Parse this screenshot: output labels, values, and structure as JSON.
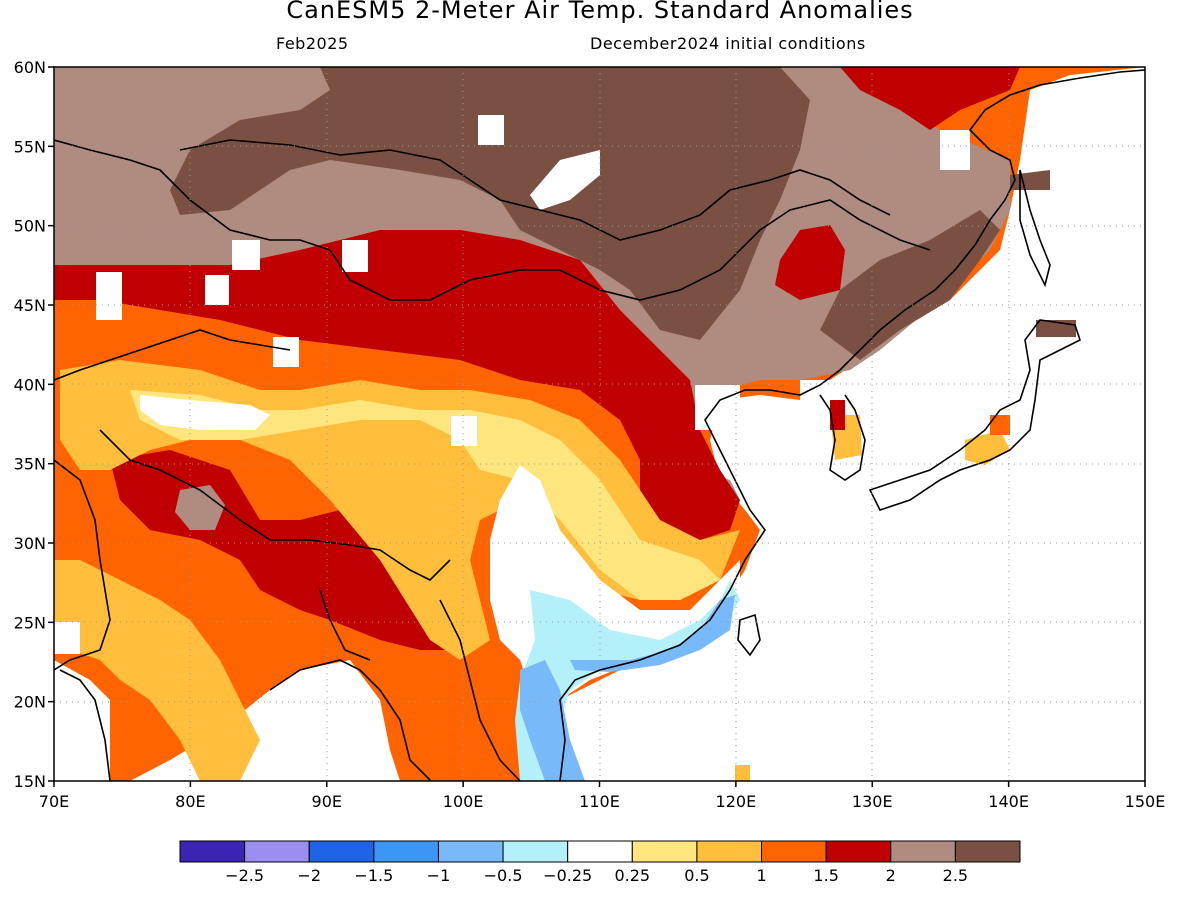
{
  "title": "CanESM5 2-Meter Air Temp. Standard Anomalies",
  "subtitle_left": "Feb2025",
  "subtitle_right": "December2024 initial conditions",
  "colors": {
    "lt_-2.5": "#3b24b4",
    "-2.5_-2": "#9b8ef0",
    "-2_-1.5": "#1e64e6",
    "-1.5_-1": "#3c96f5",
    "-1_-0.5": "#78b9fa",
    "-0.5_-0.25": "#b4f0fa",
    "-0.25_0.25": "#ffffff",
    "0.25_0.5": "#ffe57e",
    "0.5_1": "#ffbe3c",
    "1_1.5": "#ff6400",
    "1.5_2": "#c00000",
    "2_2.5": "#b08b7f",
    "gt_2.5": "#7a5043"
  },
  "legend": {
    "colors": [
      "#3b24b4",
      "#9b8ef0",
      "#1e64e6",
      "#3c96f5",
      "#78b9fa",
      "#b4f0fa",
      "#ffffff",
      "#ffe57e",
      "#ffbe3c",
      "#ff6400",
      "#c00000",
      "#b08b7f",
      "#7a5043"
    ],
    "labels": [
      "−2.5",
      "−2",
      "−1.5",
      "−1",
      "−0.5",
      "−0.25",
      "0.25",
      "0.5",
      "1",
      "1.5",
      "2",
      "2.5"
    ]
  },
  "axes": {
    "lat_labels": [
      "60N",
      "55N",
      "50N",
      "45N",
      "40N",
      "35N",
      "30N",
      "25N",
      "20N",
      "15N"
    ],
    "lon_labels": [
      "70E",
      "80E",
      "90E",
      "100E",
      "110E",
      "120E",
      "130E",
      "140E",
      "150E"
    ],
    "lat_range": [
      15,
      60
    ],
    "lon_range": [
      70,
      150
    ]
  }
}
